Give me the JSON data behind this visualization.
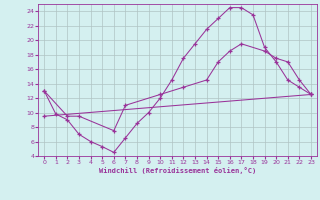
{
  "xlabel": "Windchill (Refroidissement éolien,°C)",
  "background_color": "#d4f0f0",
  "grid_color": "#b0c4c4",
  "line_color": "#993399",
  "xlim": [
    -0.5,
    23.5
  ],
  "ylim": [
    4,
    25
  ],
  "yticks": [
    4,
    6,
    8,
    10,
    12,
    14,
    16,
    18,
    20,
    22,
    24
  ],
  "xticks": [
    0,
    1,
    2,
    3,
    4,
    5,
    6,
    7,
    8,
    9,
    10,
    11,
    12,
    13,
    14,
    15,
    16,
    17,
    18,
    19,
    20,
    21,
    22,
    23
  ],
  "curve1_x": [
    0,
    1,
    2,
    3,
    4,
    5,
    6,
    7,
    8,
    9,
    10,
    11,
    12,
    13,
    14,
    15,
    16,
    17,
    18,
    19,
    20,
    21,
    22,
    23
  ],
  "curve1_y": [
    13.0,
    9.8,
    9.0,
    7.0,
    6.0,
    5.3,
    4.5,
    6.5,
    8.5,
    10.0,
    12.0,
    14.5,
    17.5,
    19.5,
    21.5,
    23.0,
    24.5,
    24.5,
    23.5,
    19.0,
    17.0,
    14.5,
    13.5,
    12.5
  ],
  "curve2_x": [
    0,
    2,
    3,
    6,
    7,
    10,
    12,
    14,
    15,
    16,
    17,
    19,
    20,
    21,
    22,
    23
  ],
  "curve2_y": [
    13.0,
    9.5,
    9.5,
    7.5,
    11.0,
    12.5,
    13.5,
    14.5,
    17.0,
    18.5,
    19.5,
    18.5,
    17.5,
    17.0,
    14.5,
    12.5
  ],
  "curve3_x": [
    0,
    23
  ],
  "curve3_y": [
    9.5,
    12.5
  ]
}
